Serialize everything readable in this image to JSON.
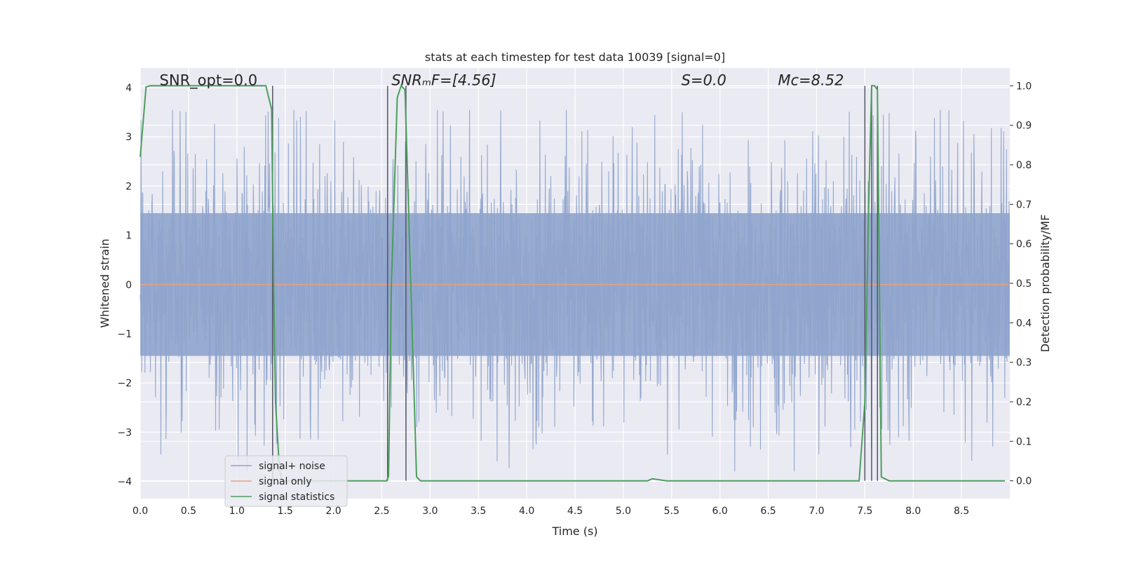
{
  "chart_data": {
    "type": "line",
    "title": "stats at each timestep for test data 10039 [signal=0]",
    "xlabel": "Time (s)",
    "ylabel": "Whitened strain",
    "ylabel_right": "Detection probability/MF",
    "xlim": [
      0,
      9
    ],
    "ylim": [
      -4.35,
      4.4
    ],
    "ylim_right": [
      -0.045,
      1.045
    ],
    "x_ticks": [
      0.0,
      0.5,
      1.0,
      1.5,
      2.0,
      2.5,
      3.0,
      3.5,
      4.0,
      4.5,
      5.0,
      5.5,
      6.0,
      6.5,
      7.0,
      7.5,
      8.0,
      8.5
    ],
    "x_tick_labels": [
      "0.0",
      "0.5",
      "1.0",
      "1.5",
      "2.0",
      "2.5",
      "3.0",
      "3.5",
      "4.0",
      "4.5",
      "5.0",
      "5.5",
      "6.0",
      "6.5",
      "7.0",
      "7.5",
      "8.0",
      "8.5"
    ],
    "y_ticks": [
      -4,
      -3,
      -2,
      -1,
      0,
      1,
      2,
      3,
      4
    ],
    "y_tick_labels": [
      "−4",
      "−3",
      "−2",
      "−1",
      "0",
      "1",
      "2",
      "3",
      "4"
    ],
    "y_ticks_right": [
      0.0,
      0.1,
      0.2,
      0.3,
      0.4,
      0.5,
      0.6,
      0.7,
      0.8,
      0.9,
      1.0
    ],
    "y_tick_labels_right": [
      "0.0",
      "0.1",
      "0.2",
      "0.3",
      "0.4",
      "0.5",
      "0.6",
      "0.7",
      "0.8",
      "0.9",
      "1.0"
    ],
    "grid": true,
    "legend_position": "lower-left",
    "series": [
      {
        "name": "signal+ noise",
        "color": "#8fa4cc",
        "kind": "noise",
        "typical_amplitude": 2.0,
        "peak_range": [
          -3.8,
          3.55
        ]
      },
      {
        "name": "signal only",
        "color": "#e8a080",
        "x": [
          0,
          9
        ],
        "y": [
          0,
          0
        ]
      },
      {
        "name": "signal statistics",
        "color": "#4c9e5c",
        "axis": "right",
        "x": [
          0.0,
          0.06,
          0.1,
          0.5,
          1.0,
          1.3,
          1.36,
          1.38,
          1.4,
          1.44,
          1.47,
          1.5,
          2.0,
          2.5,
          2.55,
          2.57,
          2.6,
          2.66,
          2.7,
          2.74,
          2.8,
          2.86,
          2.9,
          3.5,
          4.0,
          5.0,
          5.25,
          5.3,
          5.45,
          6.0,
          7.0,
          7.44,
          7.5,
          7.54,
          7.57,
          7.6,
          7.63,
          7.67,
          7.75,
          8.0,
          8.5,
          8.95
        ],
        "y": [
          0.82,
          0.997,
          1.0,
          1.0,
          1.0,
          1.0,
          0.94,
          0.5,
          0.2,
          0.03,
          0.0,
          0.0,
          0.0,
          0.0,
          0.0,
          0.012,
          0.5,
          0.97,
          1.0,
          0.99,
          0.5,
          0.01,
          0.0,
          0.0,
          0.0,
          0.0,
          0.0,
          0.005,
          0.0,
          0.0,
          0.0,
          0.0,
          0.2,
          0.7,
          1.0,
          1.0,
          0.99,
          0.01,
          0.0,
          0.0,
          0.0,
          0.0
        ]
      }
    ],
    "vertical_lines": [
      1.37,
      2.56,
      2.75,
      7.5,
      7.57,
      7.63
    ],
    "annotations": [
      {
        "id": "snr-opt",
        "label": "SNR_opt=0.0",
        "x": 0.2,
        "y": 4.05,
        "italic": false
      },
      {
        "id": "snr-mf",
        "label": "SNRₘF=[4.56]",
        "x": 2.6,
        "y": 4.05,
        "italic": true
      },
      {
        "id": "s",
        "label": "S=0.0",
        "x": 5.6,
        "y": 4.05,
        "italic": false
      },
      {
        "id": "mc",
        "label": "Mᴄ=8.52",
        "x": 6.6,
        "y": 4.05,
        "italic": false
      }
    ]
  }
}
